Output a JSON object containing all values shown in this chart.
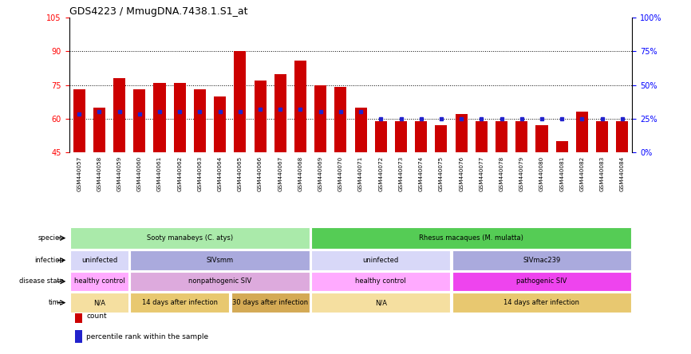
{
  "title": "GDS4223 / MmugDNA.7438.1.S1_at",
  "samples": [
    "GSM440057",
    "GSM440058",
    "GSM440059",
    "GSM440060",
    "GSM440061",
    "GSM440062",
    "GSM440063",
    "GSM440064",
    "GSM440065",
    "GSM440066",
    "GSM440067",
    "GSM440068",
    "GSM440069",
    "GSM440070",
    "GSM440071",
    "GSM440072",
    "GSM440073",
    "GSM440074",
    "GSM440075",
    "GSM440076",
    "GSM440077",
    "GSM440078",
    "GSM440079",
    "GSM440080",
    "GSM440081",
    "GSM440082",
    "GSM440083",
    "GSM440084"
  ],
  "count_values": [
    73,
    65,
    78,
    73,
    76,
    76,
    73,
    70,
    90,
    77,
    80,
    86,
    75,
    74,
    65,
    59,
    59,
    59,
    57,
    62,
    59,
    59,
    59,
    57,
    50,
    63,
    59,
    59
  ],
  "percentile_values": [
    62,
    63,
    63,
    62,
    63,
    63,
    63,
    63,
    63,
    64,
    64,
    64,
    63,
    63,
    63,
    60,
    60,
    60,
    60,
    60,
    60,
    60,
    60,
    60,
    60,
    60,
    60,
    60
  ],
  "y_min": 45,
  "y_max": 105,
  "y_ticks_left": [
    45,
    60,
    75,
    90,
    105
  ],
  "y_ticks_right_vals": [
    0,
    25,
    50,
    75,
    100
  ],
  "y_ticks_right_labels": [
    "0%",
    "25%",
    "50%",
    "75%",
    "100%"
  ],
  "bar_color": "#cc0000",
  "percentile_color": "#2222cc",
  "grid_lines": [
    60,
    75,
    90
  ],
  "tick_bg": "#d8d8d8",
  "species_row": {
    "label": "species",
    "groups": [
      {
        "text": "Sooty manabeys (C. atys)",
        "start": 0,
        "end": 12,
        "color": "#aaeaaa"
      },
      {
        "text": "Rhesus macaques (M. mulatta)",
        "start": 12,
        "end": 28,
        "color": "#55cc55"
      }
    ]
  },
  "infection_row": {
    "label": "infection",
    "groups": [
      {
        "text": "uninfected",
        "start": 0,
        "end": 3,
        "color": "#d8d8f8"
      },
      {
        "text": "SIVsmm",
        "start": 3,
        "end": 12,
        "color": "#aaaadd"
      },
      {
        "text": "uninfected",
        "start": 12,
        "end": 19,
        "color": "#d8d8f8"
      },
      {
        "text": "SIVmac239",
        "start": 19,
        "end": 28,
        "color": "#aaaadd"
      }
    ]
  },
  "disease_row": {
    "label": "disease state",
    "groups": [
      {
        "text": "healthy control",
        "start": 0,
        "end": 3,
        "color": "#ffaaff"
      },
      {
        "text": "nonpathogenic SIV",
        "start": 3,
        "end": 12,
        "color": "#ddaadd"
      },
      {
        "text": "healthy control",
        "start": 12,
        "end": 19,
        "color": "#ffaaff"
      },
      {
        "text": "pathogenic SIV",
        "start": 19,
        "end": 28,
        "color": "#ee44ee"
      }
    ]
  },
  "time_row": {
    "label": "time",
    "groups": [
      {
        "text": "N/A",
        "start": 0,
        "end": 3,
        "color": "#f5dfa0"
      },
      {
        "text": "14 days after infection",
        "start": 3,
        "end": 8,
        "color": "#e8c870"
      },
      {
        "text": "30 days after infection",
        "start": 8,
        "end": 12,
        "color": "#d4aa55"
      },
      {
        "text": "N/A",
        "start": 12,
        "end": 19,
        "color": "#f5dfa0"
      },
      {
        "text": "14 days after infection",
        "start": 19,
        "end": 28,
        "color": "#e8c870"
      }
    ]
  },
  "legend": [
    {
      "label": "count",
      "color": "#cc0000"
    },
    {
      "label": "percentile rank within the sample",
      "color": "#2222cc"
    }
  ]
}
